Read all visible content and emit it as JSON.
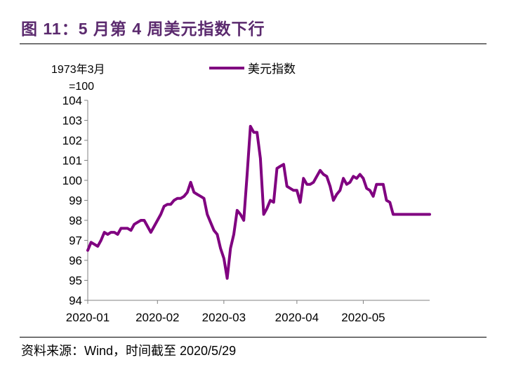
{
  "figure": {
    "title": "图 11：5 月第 4 周美元指数下行",
    "source": "资料来源：Wind，时间截至 2020/5/29"
  },
  "colors": {
    "series": "#800080",
    "axis": "#808080",
    "title": "#5b2a6e"
  },
  "chart_data": {
    "type": "line",
    "title": "",
    "unit_line1": "1973年3月",
    "unit_line2": "=100",
    "xlabel": "",
    "ylabel": "",
    "ylim": [
      94,
      104
    ],
    "yticks": [
      94,
      95,
      96,
      97,
      98,
      99,
      100,
      101,
      102,
      103,
      104
    ],
    "x_range": [
      0,
      103
    ],
    "xticks": [
      {
        "pos": 0,
        "label": "2020-01"
      },
      {
        "pos": 21,
        "label": "2020-02"
      },
      {
        "pos": 41,
        "label": "2020-03"
      },
      {
        "pos": 63,
        "label": "2020-04"
      },
      {
        "pos": 83,
        "label": "2020-05"
      }
    ],
    "legend": {
      "position": "top",
      "entries": [
        "美元指数"
      ]
    },
    "grid": false,
    "series": [
      {
        "name": "美元指数",
        "color": "#800080",
        "x": [
          0,
          1,
          2,
          3,
          4,
          5,
          6,
          7,
          8,
          9,
          10,
          11,
          12,
          13,
          14,
          15,
          16,
          17,
          18,
          19,
          20,
          21,
          22,
          23,
          24,
          25,
          26,
          27,
          28,
          29,
          30,
          31,
          32,
          33,
          34,
          35,
          36,
          37,
          38,
          39,
          40,
          41,
          42,
          43,
          44,
          45,
          46,
          47,
          48,
          49,
          50,
          51,
          52,
          53,
          54,
          55,
          56,
          57,
          58,
          59,
          60,
          61,
          62,
          63,
          64,
          65,
          66,
          67,
          68,
          69,
          70,
          71,
          72,
          73,
          74,
          75,
          76,
          77,
          78,
          79,
          80,
          81,
          82,
          83,
          84,
          85,
          86,
          87,
          88,
          89,
          90,
          91,
          92,
          93,
          94,
          95,
          96,
          97,
          98,
          99,
          100,
          101,
          102,
          103
        ],
        "values": [
          96.5,
          96.9,
          96.8,
          96.7,
          97.0,
          97.4,
          97.3,
          97.4,
          97.4,
          97.3,
          97.6,
          97.6,
          97.6,
          97.5,
          97.8,
          97.9,
          98.0,
          98.0,
          97.7,
          97.4,
          97.7,
          98.0,
          98.3,
          98.7,
          98.8,
          98.8,
          99.0,
          99.1,
          99.1,
          99.2,
          99.4,
          99.9,
          99.4,
          99.3,
          99.2,
          99.1,
          98.3,
          97.9,
          97.5,
          97.3,
          96.6,
          96.1,
          95.1,
          96.6,
          97.3,
          98.5,
          98.3,
          98.0,
          100.3,
          102.7,
          102.4,
          102.4,
          101.1,
          98.3,
          98.6,
          99.0,
          98.9,
          100.6,
          100.7,
          100.8,
          99.7,
          99.6,
          99.5,
          99.5,
          98.9,
          100.1,
          99.8,
          99.8,
          99.9,
          100.2,
          100.5,
          100.3,
          100.2,
          99.7,
          99.0,
          99.3,
          99.5,
          100.1,
          99.8,
          99.9,
          100.2,
          100.1,
          100.3,
          100.1,
          99.6,
          99.5,
          99.2,
          99.8,
          99.8,
          99.8,
          99.0,
          98.9,
          98.3,
          98.3,
          98.3,
          98.3,
          98.3,
          98.3,
          98.3,
          98.3,
          98.3,
          98.3,
          98.3,
          98.3
        ]
      }
    ]
  }
}
